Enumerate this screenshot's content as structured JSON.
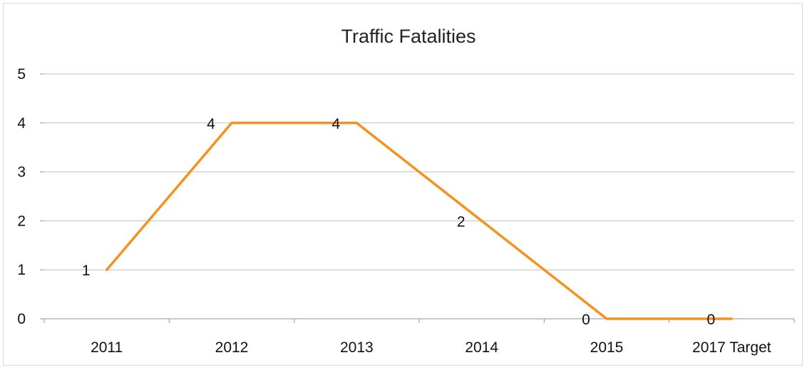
{
  "chart_data": {
    "type": "line",
    "title": "Traffic Fatalities",
    "categories": [
      "2011",
      "2012",
      "2013",
      "2014",
      "2015",
      "2017 Target"
    ],
    "series": [
      {
        "values": [
          1,
          4,
          4,
          2,
          0,
          0
        ],
        "color": "#F5921E"
      }
    ],
    "data_labels": [
      "1",
      "4",
      "4",
      "2",
      "0",
      "0"
    ],
    "y_ticks": [
      0,
      1,
      2,
      3,
      4,
      5
    ],
    "ylim": [
      0,
      5
    ],
    "grid": true,
    "legend": "none"
  }
}
